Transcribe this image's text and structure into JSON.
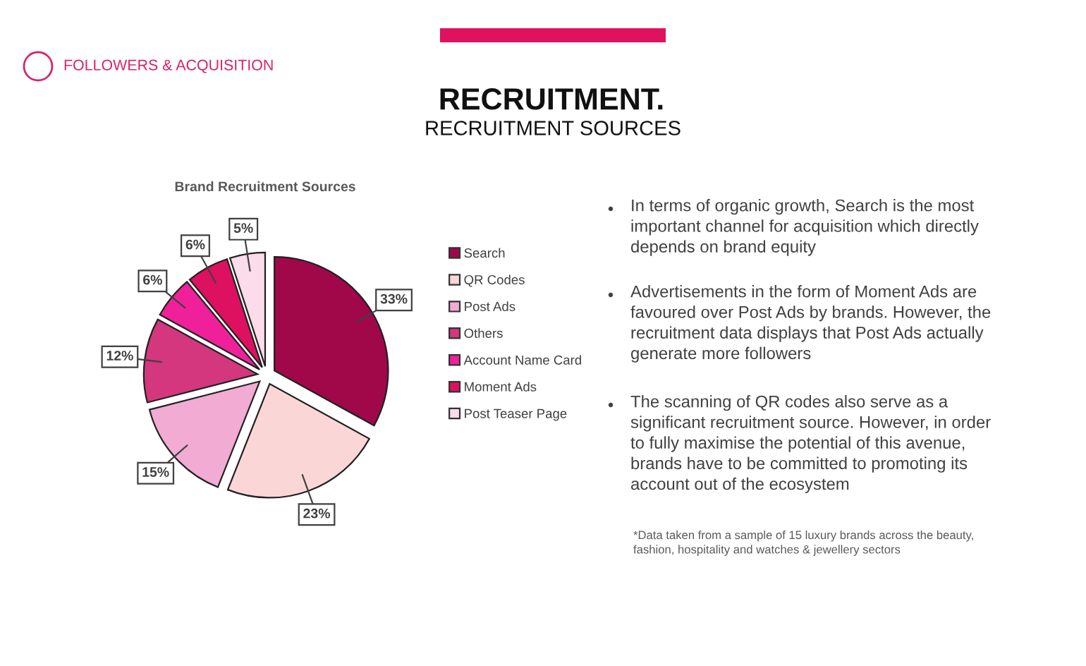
{
  "chart_data": {
    "type": "pie",
    "title": "RECRUITMENT.",
    "subtitle": "RECRUITMENT SOURCES",
    "categories": [
      "Search",
      "QR Codes",
      "Post Ads",
      "Others",
      "Account Name Card",
      "Moment Ads",
      "Post Teaser Page"
    ],
    "values": [
      33,
      23,
      15,
      12,
      6,
      6,
      5
    ],
    "colors": [
      "#a0084a",
      "#fbd6d6",
      "#f2abd3",
      "#d4377e",
      "#f0209a",
      "#de1060",
      "#fcdbea"
    ],
    "value_labels": [
      "33%",
      "23%",
      "15%",
      "12%",
      "6%",
      "6%",
      "5%"
    ],
    "legend": "right",
    "annotations": [
      "FOLLOWERS & ACQUISITION",
      "Brand Recruitment Sources",
      "In terms of organic growth, Search is the most important channel for acquisition which directly depends on brand equity",
      "Advertisements in the form of Moment Ads are favoured over Post Ads by brands. However, the recruitment data displays that Post Ads actually generate more followers",
      "The scanning of QR codes also serve as a significant recruitment source. However, in order to fully maximise the potential of this avenue, brands have to be committed to promoting its account out of the ecosystem",
      "*Data taken from a sample of 15 luxury brands across the beauty, fashion, hospitality and watches & jewellery sectors"
    ]
  }
}
